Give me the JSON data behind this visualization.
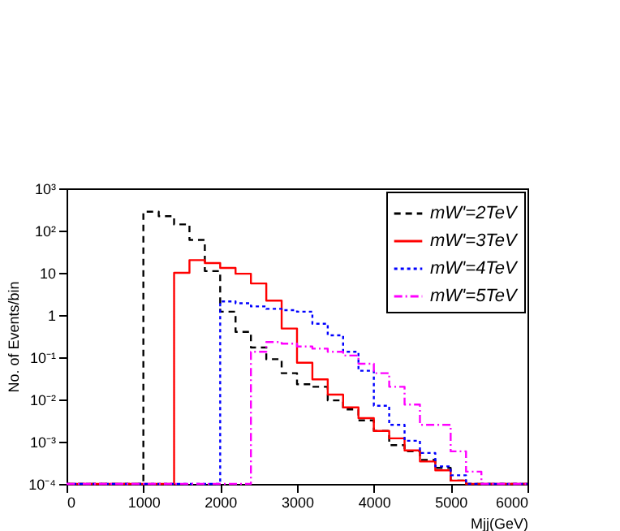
{
  "chart_data": {
    "type": "histogram",
    "xlabel": "Mjj(GeV)",
    "ylabel": "No. of Events/bin",
    "log": "y",
    "grid": false,
    "legend": "top right",
    "bins": [
      0,
      200,
      400,
      600,
      800,
      1000,
      1200,
      1400,
      1600,
      1800,
      2000,
      2200,
      2400,
      2600,
      2800,
      3000,
      3200,
      3400,
      3600,
      3800,
      4000,
      4200,
      4400,
      4600,
      4800,
      5000,
      5200,
      5400,
      5600,
      5800,
      6000
    ],
    "xlim": [
      0,
      6000
    ],
    "xticks": [
      0,
      1000,
      2000,
      3000,
      4000,
      5000,
      6000
    ],
    "ylim": [
      0.0001,
      1000
    ],
    "yticks": [
      {
        "value": 0.0001,
        "label": "10⁻⁴"
      },
      {
        "value": 0.001,
        "label": "10⁻³"
      },
      {
        "value": 0.01,
        "label": "10⁻²"
      },
      {
        "value": 0.1,
        "label": "10⁻¹"
      },
      1,
      10,
      {
        "value": 100,
        "label": "10²"
      },
      {
        "value": 1000,
        "label": "10³"
      }
    ],
    "series": [
      {
        "name": "mW'=2TeV",
        "color": "#000000",
        "line_style": "dashed",
        "values": [
          0.0001,
          0.0001,
          0.0001,
          0.0001,
          0.0001,
          280,
          220,
          140,
          60,
          11,
          1.2,
          0.4,
          0.17,
          0.09,
          0.042,
          0.023,
          0.02,
          0.0095,
          0.0058,
          0.0032,
          0.0018,
          0.00083,
          0.00059,
          0.00037,
          0.00024,
          0.00012,
          0.0001,
          0.0001,
          0.0001,
          0.0001
        ]
      },
      {
        "name": "mW'=3TeV",
        "color": "#ff0000",
        "line_style": "solid",
        "values": [
          0.0001,
          0.0001,
          0.0001,
          0.0001,
          0.0001,
          0.0001,
          0.0001,
          10,
          20,
          17,
          13,
          9.5,
          5.6,
          2.2,
          0.48,
          0.074,
          0.03,
          0.013,
          0.0065,
          0.0036,
          0.0018,
          0.0012,
          0.00062,
          0.00034,
          0.00021,
          0.00012,
          0.0001,
          0.0001,
          0.0001,
          0.0001
        ]
      },
      {
        "name": "mW'=4TeV",
        "color": "#0000ff",
        "line_style": "dotted",
        "values": [
          0.0001,
          0.0001,
          0.0001,
          0.0001,
          0.0001,
          0.0001,
          0.0001,
          0.0001,
          0.0001,
          0.0001,
          2.1,
          1.9,
          1.6,
          1.4,
          1.3,
          1.2,
          0.62,
          0.33,
          0.135,
          0.048,
          0.0071,
          0.0025,
          0.00105,
          0.00054,
          0.00026,
          0.00016,
          0.0001,
          0.0001,
          0.0001,
          0.0001
        ]
      },
      {
        "name": "mW'=5TeV",
        "color": "#ff00ff",
        "line_style": "dashdot",
        "values": [
          0.0001,
          0.0001,
          0.0001,
          0.0001,
          0.0001,
          0.0001,
          0.0001,
          0.0001,
          0.0001,
          0.0001,
          0.0001,
          0.0001,
          0.135,
          0.23,
          0.21,
          0.18,
          0.16,
          0.135,
          0.11,
          0.07,
          0.042,
          0.02,
          0.0076,
          0.0025,
          0.0025,
          0.00059,
          0.000195,
          0.0001,
          0.0001,
          0.0001
        ]
      }
    ]
  }
}
